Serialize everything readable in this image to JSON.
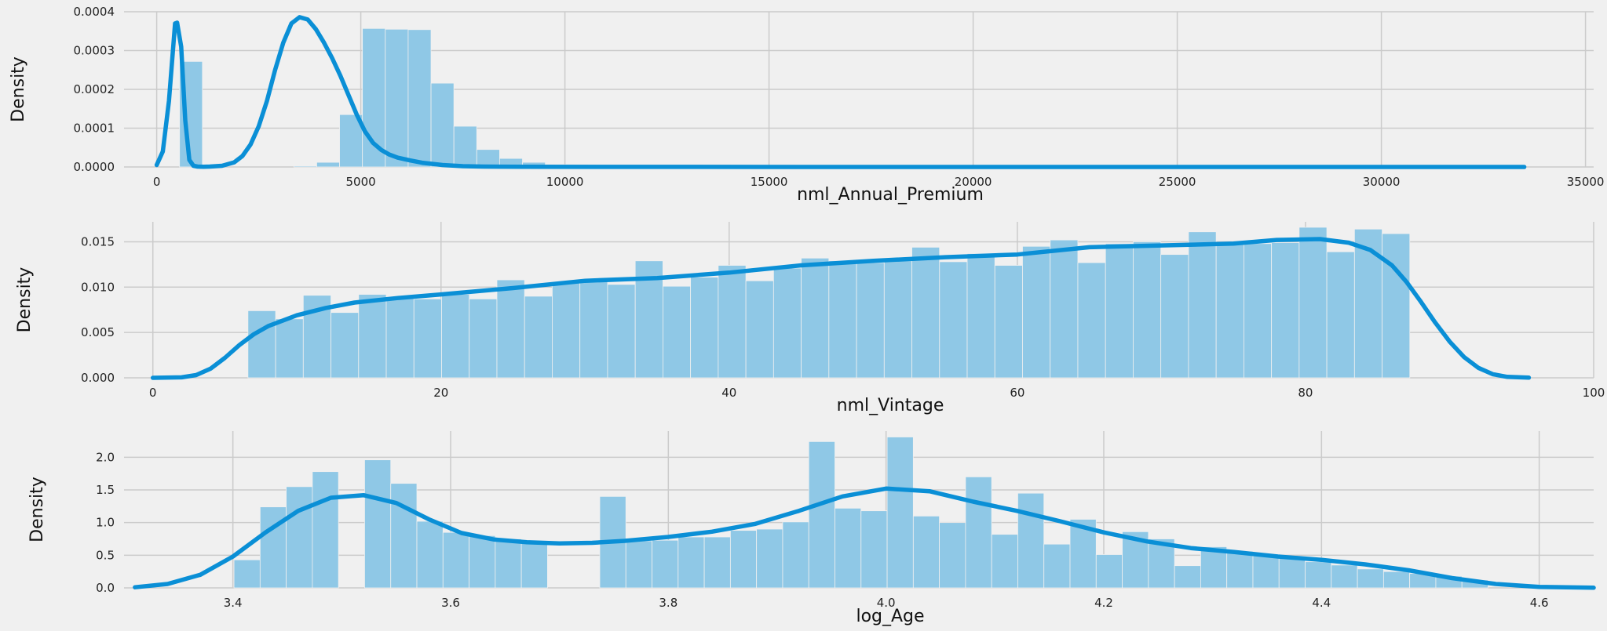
{
  "chart_data": [
    {
      "type": "histogram",
      "xlabel": "nml_Annual_Premium",
      "ylabel": "Density",
      "xlim": [
        -800,
        35200
      ],
      "ylim": [
        0,
        0.0004
      ],
      "xticks": [
        0,
        5000,
        10000,
        15000,
        20000,
        25000,
        30000,
        35000
      ],
      "xtick_labels": [
        "0",
        "5000",
        "10000",
        "15000",
        "20000",
        "25000",
        "30000",
        "35000"
      ],
      "yticks": [
        0,
        0.0001,
        0.0002,
        0.0003,
        0.0004
      ],
      "ytick_labels": [
        "0.0000",
        "0.0001",
        "0.0002",
        "0.0003",
        "0.0004"
      ],
      "bin_start": 0,
      "bin_width": 560,
      "bin_values": [
        0,
        0.000272,
        0,
        0,
        0,
        0,
        2.5e-06,
        1.2e-05,
        0.000135,
        0.000357,
        0.000355,
        0.000354,
        0.000216,
        0.000105,
        4.5e-05,
        2.2e-05,
        1.2e-05,
        6e-06,
        4e-06,
        2.5e-06,
        2e-06,
        1.5e-06,
        1e-06,
        8e-07,
        5e-07
      ],
      "kde": {
        "x": [
          0,
          150,
          300,
          450,
          500,
          600,
          700,
          800,
          900,
          1000,
          1150,
          1300,
          1600,
          1900,
          2100,
          2300,
          2500,
          2700,
          2900,
          3100,
          3300,
          3500,
          3700,
          3900,
          4100,
          4300,
          4500,
          4700,
          4900,
          5100,
          5300,
          5500,
          5700,
          5900,
          6200,
          6500,
          7000,
          7500,
          8000,
          9000,
          12000,
          20000,
          33500
        ],
        "y": [
          5e-06,
          4e-05,
          0.00017,
          0.00037,
          0.000372,
          0.00031,
          0.00012,
          1.8e-05,
          3e-06,
          1e-06,
          5e-07,
          1e-06,
          3e-06,
          1.2e-05,
          2.8e-05,
          5.8e-05,
          0.000105,
          0.00017,
          0.00025,
          0.00032,
          0.00037,
          0.000386,
          0.00038,
          0.000355,
          0.00032,
          0.00028,
          0.000235,
          0.000185,
          0.000135,
          9.2e-05,
          6.2e-05,
          4.4e-05,
          3.2e-05,
          2.4e-05,
          1.7e-05,
          1.1e-05,
          5e-06,
          2e-06,
          1e-06,
          4e-07,
          2e-07,
          1e-07,
          5e-08
        ]
      }
    },
    {
      "type": "histogram",
      "xlabel": "nml_Vintage",
      "ylabel": "Density",
      "xlim": [
        -2,
        100
      ],
      "ylim": [
        0,
        0.0172
      ],
      "xticks": [
        0,
        20,
        40,
        60,
        80,
        100
      ],
      "xtick_labels": [
        "0",
        "20",
        "40",
        "60",
        "80",
        "100"
      ],
      "yticks": [
        0,
        0.005,
        0.01,
        0.015
      ],
      "ytick_labels": [
        "0.000",
        "0.005",
        "0.010",
        "0.015"
      ],
      "bin_start": 6.6,
      "bin_width": 1.92,
      "bin_values": [
        0.0074,
        0.0065,
        0.0091,
        0.0072,
        0.0092,
        0.0089,
        0.0087,
        0.0092,
        0.0087,
        0.0108,
        0.009,
        0.0105,
        0.0108,
        0.0103,
        0.0129,
        0.0101,
        0.0111,
        0.0124,
        0.0107,
        0.0121,
        0.0132,
        0.0129,
        0.0127,
        0.0129,
        0.0144,
        0.0128,
        0.0137,
        0.0124,
        0.0145,
        0.0152,
        0.0127,
        0.0148,
        0.015,
        0.0136,
        0.0161,
        0.0148,
        0.0148,
        0.0149,
        0.0166,
        0.0139,
        0.0164,
        0.0159
      ],
      "kde": {
        "x": [
          0,
          2,
          3,
          4,
          5,
          6,
          7,
          8,
          10,
          12,
          14,
          17,
          20,
          25,
          30,
          35,
          40,
          45,
          50,
          55,
          60,
          65,
          70,
          75,
          78,
          81,
          83,
          84.5,
          86,
          87,
          88,
          89,
          90,
          91,
          92,
          93,
          94,
          95.5
        ],
        "y": [
          0,
          5e-05,
          0.0003,
          0.001,
          0.0022,
          0.0036,
          0.0048,
          0.0057,
          0.0069,
          0.0077,
          0.0083,
          0.0088,
          0.0092,
          0.0099,
          0.0107,
          0.011,
          0.0116,
          0.0124,
          0.0129,
          0.0133,
          0.0136,
          0.0144,
          0.0146,
          0.0148,
          0.0152,
          0.0153,
          0.0149,
          0.0141,
          0.0124,
          0.0106,
          0.0084,
          0.0061,
          0.004,
          0.0023,
          0.0011,
          0.0004,
          0.0001,
          2e-05
        ]
      }
    },
    {
      "type": "histogram",
      "xlabel": "log_Age",
      "ylabel": "Density",
      "xlim": [
        3.3,
        4.65
      ],
      "ylim": [
        0,
        2.4
      ],
      "xticks": [
        3.4,
        3.6,
        3.8,
        4.0,
        4.2,
        4.4,
        4.6
      ],
      "xtick_labels": [
        "3.4",
        "3.6",
        "3.8",
        "4.0",
        "4.2",
        "4.4",
        "4.6"
      ],
      "yticks": [
        0,
        0.5,
        1.0,
        1.5,
        2.0
      ],
      "ytick_labels": [
        "0.0",
        "0.5",
        "1.0",
        "1.5",
        "2.0"
      ],
      "bin_start": 3.401,
      "bin_width": 0.024,
      "bin_values": [
        0.43,
        1.24,
        1.55,
        1.78,
        0,
        1.96,
        1.6,
        1.02,
        0.85,
        0.8,
        0.75,
        0.72,
        0,
        0,
        1.4,
        0.72,
        0.73,
        0.78,
        0.78,
        0.88,
        0.9,
        1.01,
        2.24,
        1.22,
        1.18,
        2.31,
        1.1,
        1.0,
        1.7,
        0.82,
        1.45,
        0.67,
        1.05,
        0.51,
        0.86,
        0.75,
        0.34,
        0.63,
        0.56,
        0.5,
        0.45,
        0.4,
        0.35,
        0.29,
        0.25,
        0.22,
        0.18,
        0.12
      ],
      "kde": {
        "x": [
          3.31,
          3.34,
          3.37,
          3.4,
          3.43,
          3.46,
          3.49,
          3.52,
          3.55,
          3.58,
          3.61,
          3.64,
          3.67,
          3.7,
          3.73,
          3.76,
          3.8,
          3.84,
          3.88,
          3.92,
          3.96,
          4.0,
          4.04,
          4.08,
          4.12,
          4.16,
          4.2,
          4.24,
          4.28,
          4.32,
          4.36,
          4.4,
          4.44,
          4.48,
          4.52,
          4.56,
          4.6,
          4.65
        ],
        "y": [
          0.01,
          0.06,
          0.2,
          0.48,
          0.85,
          1.18,
          1.38,
          1.42,
          1.3,
          1.05,
          0.84,
          0.74,
          0.7,
          0.68,
          0.69,
          0.72,
          0.78,
          0.86,
          0.98,
          1.18,
          1.4,
          1.52,
          1.48,
          1.32,
          1.18,
          1.02,
          0.85,
          0.71,
          0.61,
          0.55,
          0.48,
          0.43,
          0.36,
          0.27,
          0.15,
          0.06,
          0.015,
          0.002
        ]
      }
    }
  ]
}
